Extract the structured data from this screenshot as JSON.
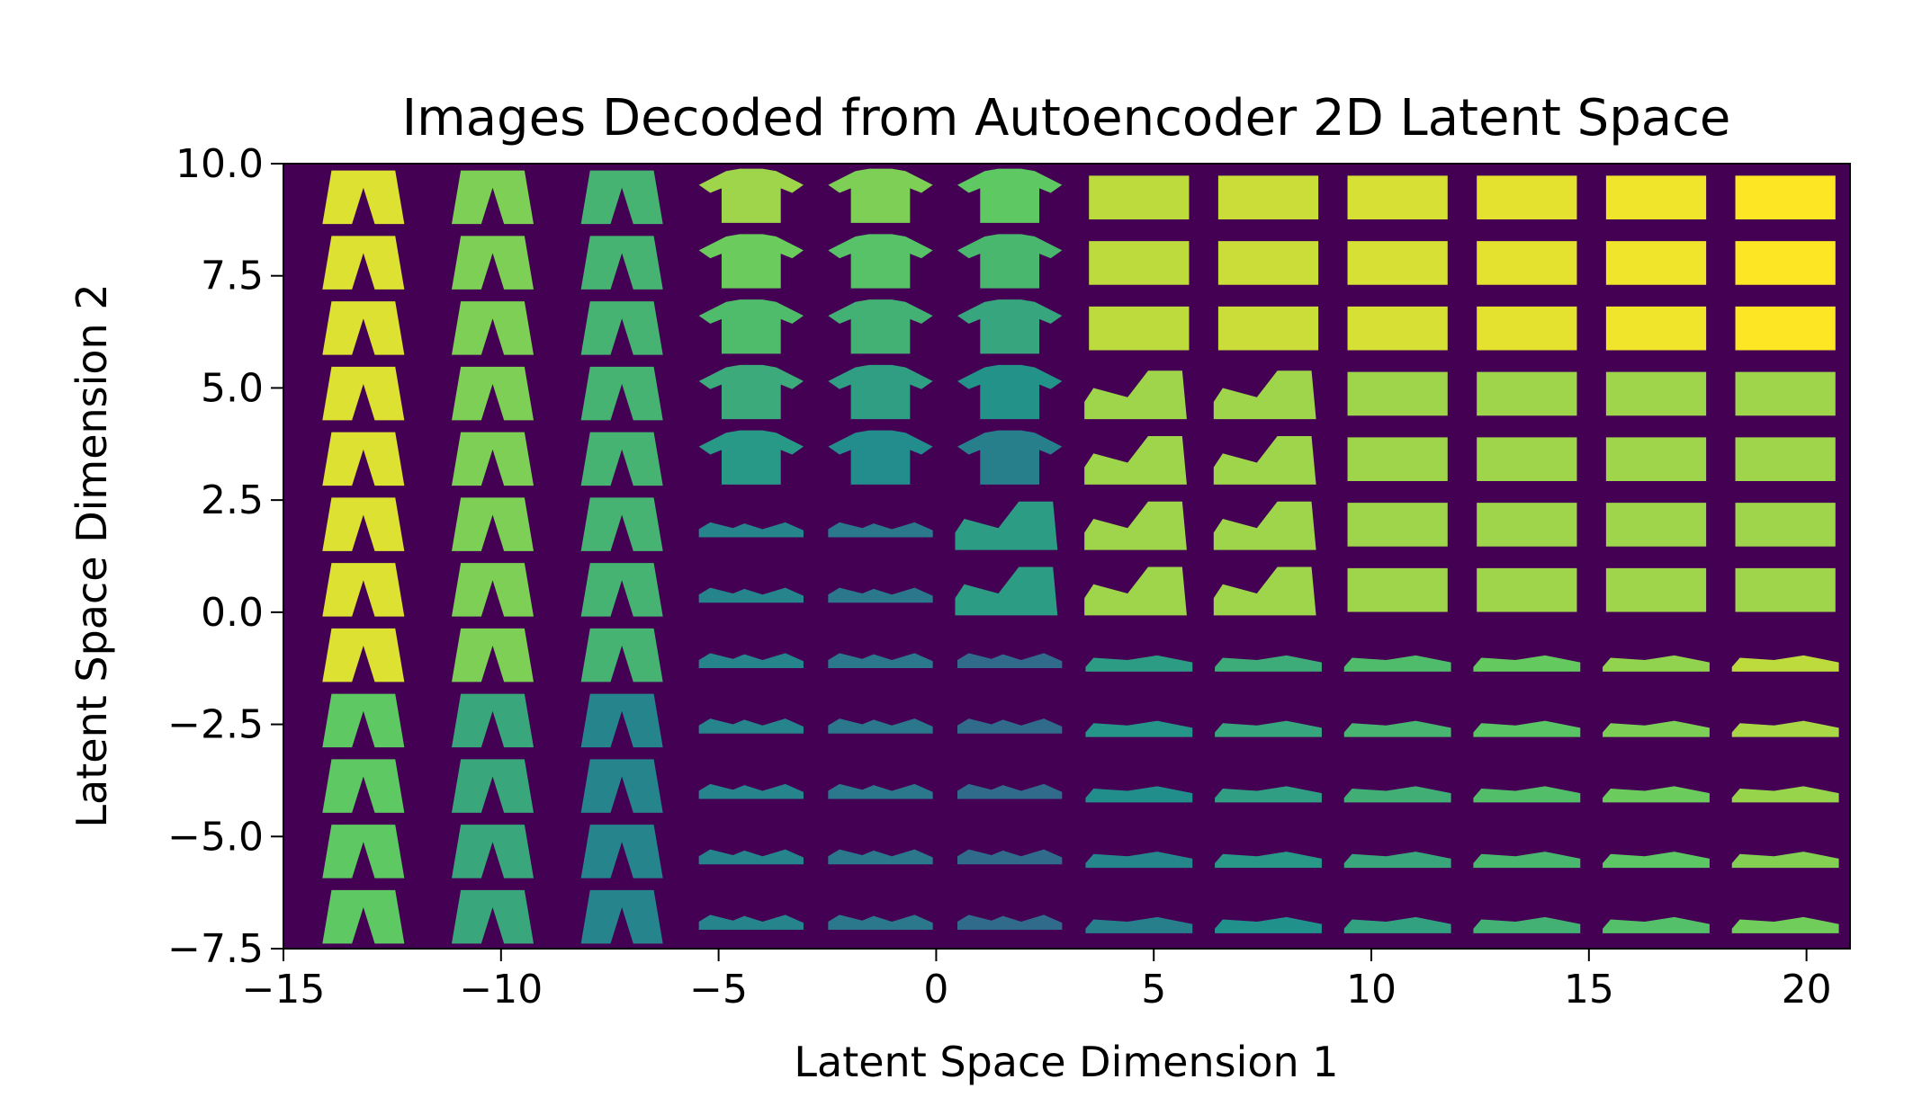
{
  "chart_data": {
    "type": "heatmap",
    "title": "Images Decoded from  Autoencoder 2D Latent Space",
    "xlabel": "Latent Space Dimension 1",
    "ylabel": "Latent Space Dimension 2",
    "xlim": [
      -15,
      21
    ],
    "ylim": [
      -7.5,
      10
    ],
    "x_ticks": [
      -15,
      -10,
      -5,
      0,
      5,
      10,
      15,
      20
    ],
    "x_tick_labels": [
      "−15",
      "−10",
      "−5",
      "0",
      "5",
      "10",
      "15",
      "20"
    ],
    "y_ticks": [
      -7.5,
      -5.0,
      -2.5,
      0.0,
      2.5,
      5.0,
      7.5,
      10.0
    ],
    "y_tick_labels": [
      "−7.5",
      "−5.0",
      "−2.5",
      "0.0",
      "2.5",
      "5.0",
      "7.5",
      "10.0"
    ],
    "grid_columns": 12,
    "grid_rows": 12,
    "colormap": "viridis",
    "background_color": "#440154",
    "grid": false
  }
}
